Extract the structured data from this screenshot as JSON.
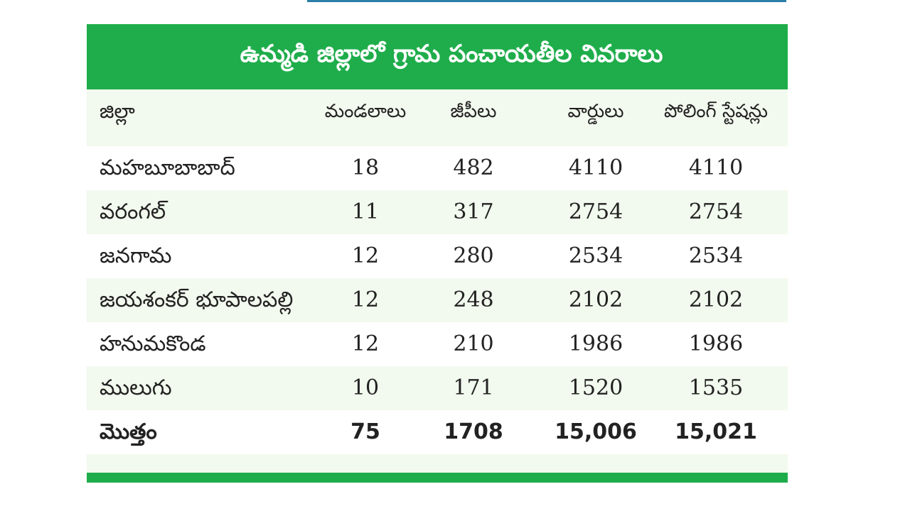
{
  "table": {
    "title": "ఉమ్మడి జిల్లాలో గ్రామ పంచాయతీల వివరాలు",
    "headers": [
      "జిల్లా",
      "మండలాలు",
      "జీపీలు",
      "వార్డులు",
      "పోలింగ్ స్టేషన్లు"
    ],
    "rows": [
      [
        "మహబూబాబాద్",
        "18",
        "482",
        "4110",
        "4110"
      ],
      [
        "వరంగల్",
        "11",
        "317",
        "2754",
        "2754"
      ],
      [
        "జనగామ",
        "12",
        "280",
        "2534",
        "2534"
      ],
      [
        "జయశంకర్ భూపాలపల్లి",
        "12",
        "248",
        "2102",
        "2102"
      ],
      [
        "హనుమకొండ",
        "12",
        "210",
        "1986",
        "1986"
      ],
      [
        "ములుగు",
        "10",
        "171",
        "1520",
        "1535"
      ]
    ],
    "total": [
      "మొత్తం",
      "75",
      "1708",
      "15,006",
      "15,021"
    ]
  },
  "colors": {
    "accent_green": "#1fad4b",
    "row_tint": "#f2f9ee",
    "top_rule_blue": "#2a7ea8"
  }
}
